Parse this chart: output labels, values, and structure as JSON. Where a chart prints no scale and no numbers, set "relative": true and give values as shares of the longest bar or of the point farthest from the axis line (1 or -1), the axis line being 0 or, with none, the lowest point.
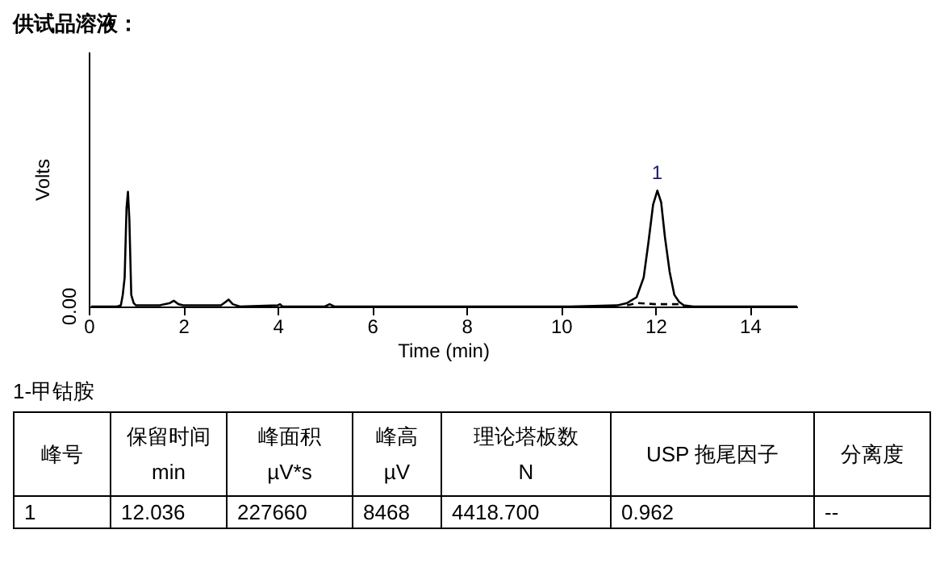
{
  "chart_data": {
    "type": "line",
    "title": "供试品溶液：",
    "xlabel": "Time (min)",
    "ylabel": "Volts",
    "relative": true,
    "xlim": [
      0,
      15
    ],
    "xticks": [
      0,
      2,
      4,
      6,
      8,
      10,
      12,
      14
    ],
    "series": [
      {
        "color": "#000000",
        "line_style": "solid",
        "x": [
          0.05,
          0.6,
          0.68,
          0.72,
          0.76,
          0.8,
          0.83,
          0.86,
          0.9,
          0.95,
          1.0,
          1.5,
          1.72,
          1.8,
          1.9,
          2.0,
          2.8,
          2.9,
          2.96,
          3.05,
          3.2,
          4.0,
          4.05,
          4.1,
          5.0,
          5.1,
          5.2,
          10.2,
          11.2,
          11.4,
          11.6,
          11.75,
          11.85,
          11.95,
          12.04,
          12.12,
          12.2,
          12.3,
          12.4,
          12.5,
          12.6,
          12.8,
          15
        ],
        "values": [
          0.0,
          0.0,
          0.01,
          0.1,
          0.25,
          0.85,
          0.99,
          0.75,
          0.1,
          0.03,
          0.01,
          0.01,
          0.03,
          0.05,
          0.02,
          0.01,
          0.01,
          0.04,
          0.06,
          0.02,
          0.0,
          0.01,
          0.02,
          0.0,
          0.0,
          0.02,
          0.0,
          0.0,
          0.01,
          0.03,
          0.08,
          0.25,
          0.55,
          0.88,
          1,
          0.9,
          0.6,
          0.3,
          0.1,
          0.04,
          0.01,
          0.0,
          0.0
        ]
      },
      {
        "color": "#000000",
        "line_style": "dashed",
        "x": [
          11.4,
          11.6,
          12.0,
          12.5,
          12.6
        ],
        "values": [
          0.01,
          0.03,
          0.02,
          0.02,
          0.0
        ]
      }
    ],
    "annotations": [
      "0.00",
      {
        "text": "1",
        "x": 12.036,
        "y": 1
      },
      "1-甲钴胺",
      "峰号",
      "保留时间\nmin",
      "峰面积\nµV*s",
      "峰高\nµV",
      "理论塔板数\nN",
      "USP 拖尾因子",
      "分离度",
      "1",
      "12.036",
      "227660",
      "8468",
      "4418.700",
      "0.962",
      "--"
    ],
    "grid": false,
    "marker": "none"
  }
}
